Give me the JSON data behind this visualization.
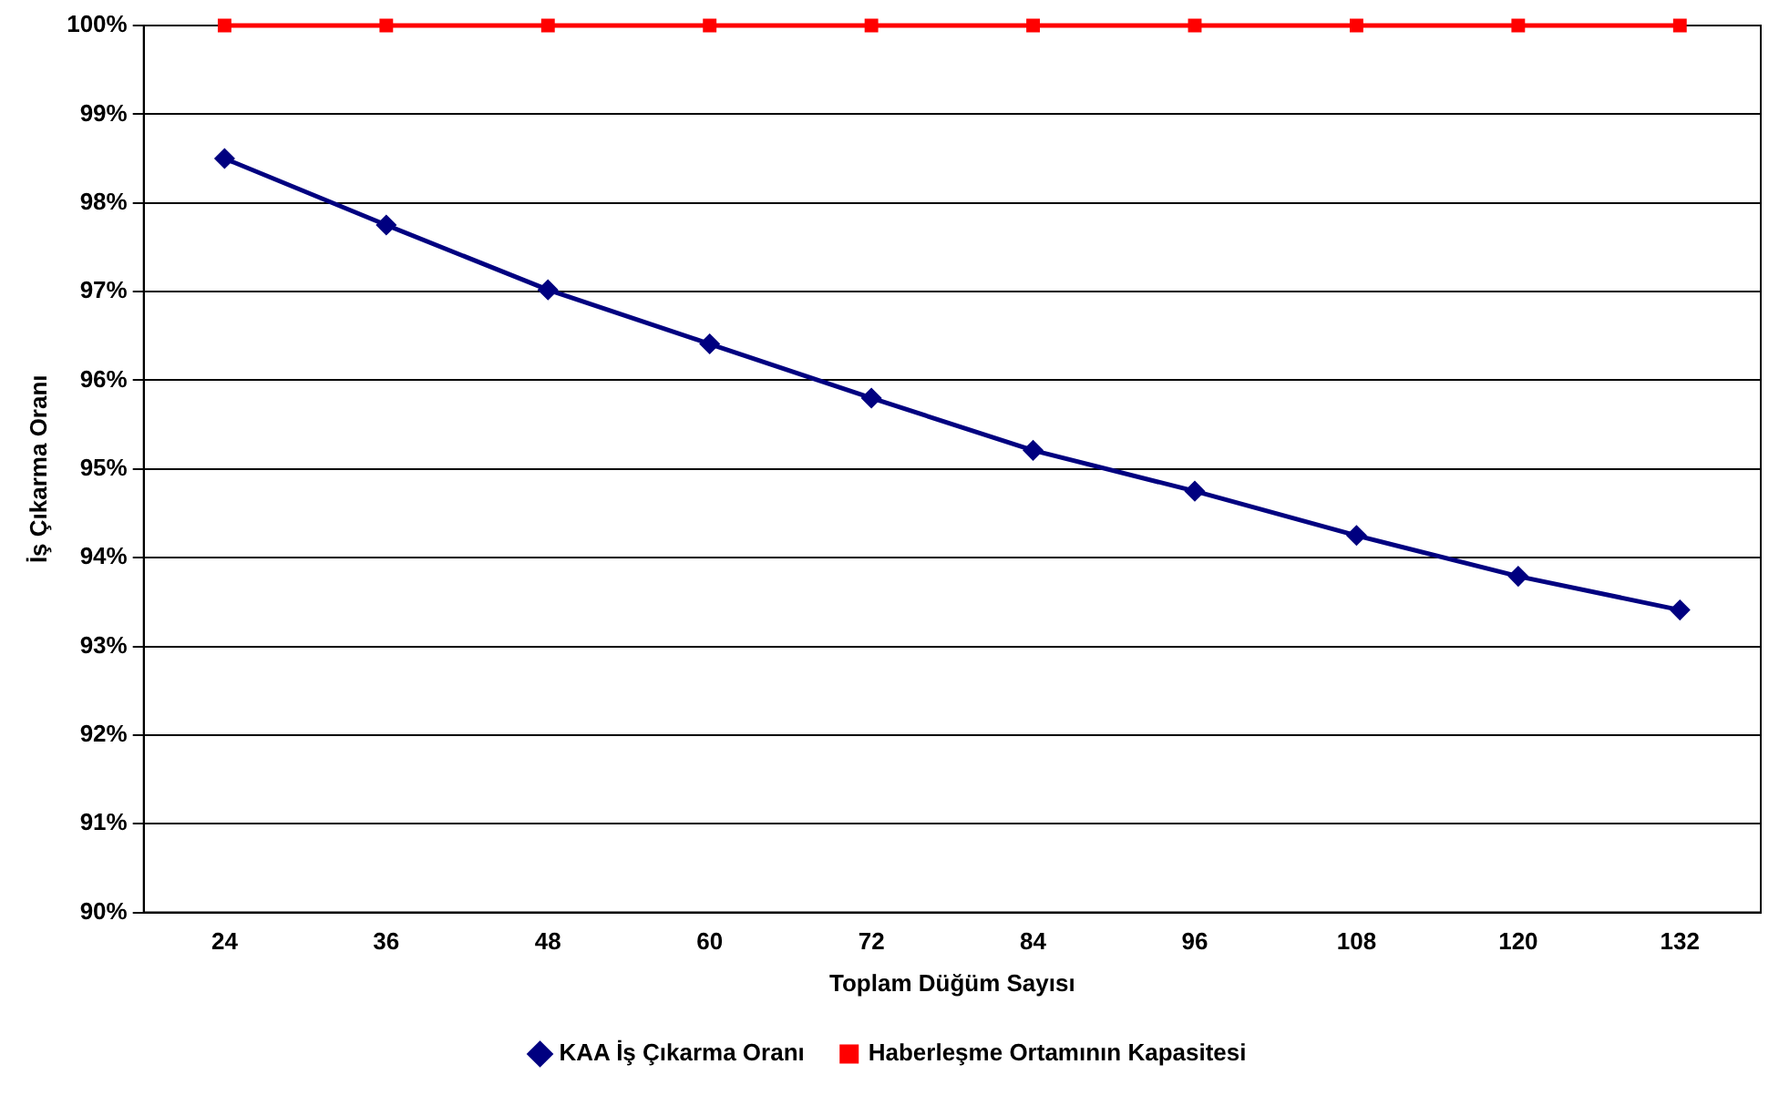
{
  "chart_data": {
    "type": "line",
    "xlabel": "Toplam Düğüm Sayısı",
    "ylabel": "İş Çıkarma Oranı",
    "categories": [
      "24",
      "36",
      "48",
      "60",
      "72",
      "84",
      "96",
      "108",
      "120",
      "132"
    ],
    "series": [
      {
        "name": "KAA İş Çıkarma Oranı",
        "color": "#000080",
        "marker": "diamond",
        "values": [
          98.5,
          97.75,
          97.02,
          96.41,
          95.8,
          95.21,
          94.75,
          94.25,
          93.79,
          93.41
        ]
      },
      {
        "name": "Haberleşme Ortamının Kapasitesi",
        "color": "#ff0000",
        "marker": "square",
        "values": [
          100,
          100,
          100,
          100,
          100,
          100,
          100,
          100,
          100,
          100
        ]
      }
    ],
    "ylim": [
      90,
      100
    ],
    "yticks": [
      {
        "value": 90,
        "label": "90%"
      },
      {
        "value": 91,
        "label": "91%"
      },
      {
        "value": 92,
        "label": "92%"
      },
      {
        "value": 93,
        "label": "93%"
      },
      {
        "value": 94,
        "label": "94%"
      },
      {
        "value": 95,
        "label": "95%"
      },
      {
        "value": 96,
        "label": "96%"
      },
      {
        "value": 97,
        "label": "97%"
      },
      {
        "value": 98,
        "label": "98%"
      },
      {
        "value": 99,
        "label": "99%"
      },
      {
        "value": 100,
        "label": "100%"
      }
    ],
    "grid": "y",
    "legend": "bottom",
    "line_style": "solid"
  }
}
